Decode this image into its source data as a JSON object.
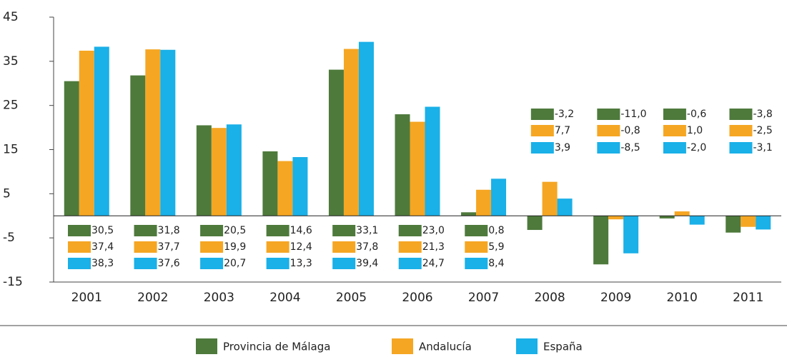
{
  "chart_data": {
    "type": "bar",
    "categories": [
      "2001",
      "2002",
      "2003",
      "2004",
      "2005",
      "2006",
      "2007",
      "2008",
      "2009",
      "2010",
      "2011"
    ],
    "series": [
      {
        "name": "Provincia de Málaga",
        "color": "#4e7a3c",
        "values": [
          30.5,
          31.8,
          20.5,
          14.6,
          33.1,
          23.0,
          0.8,
          -3.2,
          -11.0,
          -0.6,
          -3.8
        ],
        "value_labels": [
          "30,5",
          "31,8",
          "20,5",
          "14,6",
          "33,1",
          "23,0",
          "0,8",
          "-3,2",
          "-11,0",
          "-0,6",
          "-3,8"
        ]
      },
      {
        "name": "Andalucía",
        "color": "#f5a623",
        "values": [
          37.4,
          37.7,
          19.9,
          12.4,
          37.8,
          21.3,
          5.9,
          7.7,
          -0.8,
          1.0,
          -2.5
        ],
        "value_labels": [
          "37,4",
          "37,7",
          "19,9",
          "12,4",
          "37,8",
          "21,3",
          "5,9",
          "7,7",
          "-0,8",
          "1,0",
          "-2,5"
        ]
      },
      {
        "name": "España",
        "color": "#1ab0e8",
        "values": [
          38.3,
          37.6,
          20.7,
          13.3,
          39.4,
          24.7,
          8.4,
          3.9,
          -8.5,
          -2.0,
          -3.1
        ],
        "value_labels": [
          "38,3",
          "37,6",
          "20,7",
          "13,3",
          "39,4",
          "24,7",
          "8,4",
          "3,9",
          "-8,5",
          "-2,0",
          "-3,1"
        ]
      }
    ],
    "ylim": [
      -15,
      45
    ],
    "yticks": [
      45,
      35,
      25,
      15,
      5,
      -5,
      -15
    ],
    "grid": false,
    "legend": "bottom"
  }
}
